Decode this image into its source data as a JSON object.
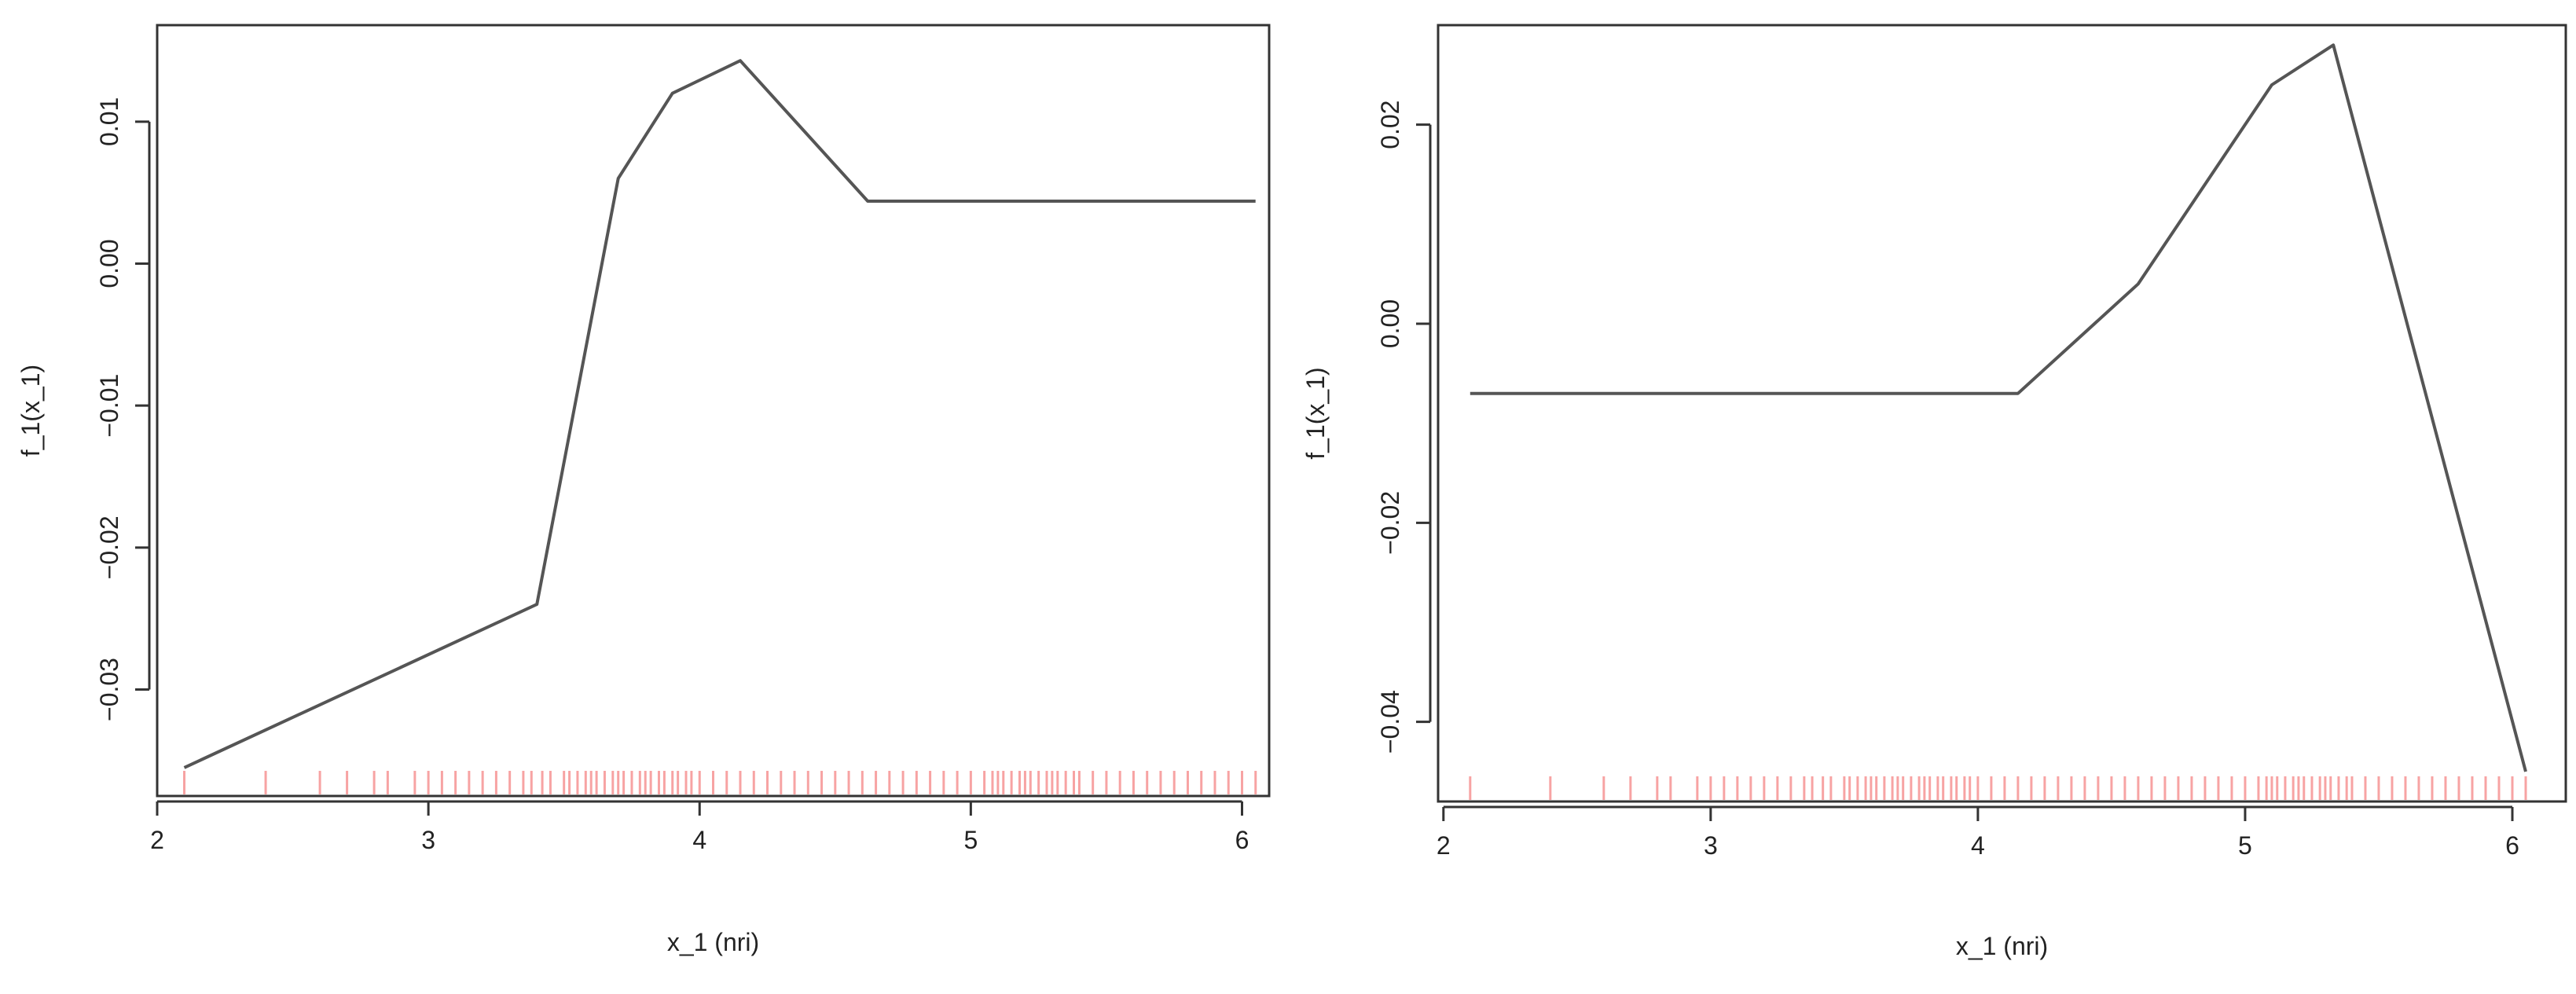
{
  "chart_data": [
    {
      "type": "line",
      "title": "",
      "xlabel": "x_1 (nri)",
      "ylabel": "f_1(x_1)",
      "xlim": [
        2.0,
        6.1
      ],
      "ylim": [
        -0.0375,
        0.0168
      ],
      "x_ticks": [
        2,
        3,
        4,
        5,
        6
      ],
      "x_tick_labels": [
        "2",
        "3",
        "4",
        "5",
        "6"
      ],
      "y_ticks": [
        -0.03,
        -0.02,
        -0.01,
        0.0,
        0.01
      ],
      "y_tick_labels": [
        "−0.03",
        "−0.02",
        "−0.01",
        "0.00",
        "0.01"
      ],
      "grid": false,
      "line_color": "#555555",
      "rug_color": "#ee3333",
      "series": [
        {
          "x": [
            2.1,
            3.4,
            3.7,
            3.9,
            4.15,
            4.62,
            6.05
          ],
          "y": [
            -0.0355,
            -0.024,
            0.006,
            0.012,
            0.0143,
            0.0044,
            0.0044
          ]
        }
      ]
    },
    {
      "type": "line",
      "title": "",
      "xlabel": "x_1 (nri)",
      "ylabel": "f_1(x_1)",
      "xlim": [
        1.98,
        6.2
      ],
      "ylim": [
        -0.048,
        0.03
      ],
      "x_ticks": [
        2,
        3,
        4,
        5,
        6
      ],
      "x_tick_labels": [
        "2",
        "3",
        "4",
        "5",
        "6"
      ],
      "y_ticks": [
        -0.04,
        -0.02,
        0.0,
        0.02
      ],
      "y_tick_labels": [
        "−0.04",
        "−0.02",
        "0.00",
        "0.02"
      ],
      "grid": false,
      "line_color": "#555555",
      "rug_color": "#ee3333",
      "series": [
        {
          "x": [
            2.1,
            4.15,
            4.6,
            5.1,
            5.33,
            6.05
          ],
          "y": [
            -0.007,
            -0.007,
            0.004,
            0.024,
            0.028,
            -0.045
          ]
        }
      ]
    }
  ],
  "rug_x": [
    2.1,
    2.4,
    2.6,
    2.7,
    2.8,
    2.85,
    2.95,
    3.0,
    3.05,
    3.1,
    3.15,
    3.2,
    3.25,
    3.3,
    3.35,
    3.38,
    3.42,
    3.45,
    3.5,
    3.52,
    3.55,
    3.58,
    3.6,
    3.62,
    3.65,
    3.68,
    3.7,
    3.72,
    3.75,
    3.78,
    3.8,
    3.82,
    3.85,
    3.87,
    3.9,
    3.92,
    3.95,
    3.97,
    4.0,
    4.05,
    4.1,
    4.15,
    4.2,
    4.25,
    4.3,
    4.35,
    4.4,
    4.45,
    4.5,
    4.55,
    4.6,
    4.65,
    4.7,
    4.75,
    4.8,
    4.85,
    4.9,
    4.95,
    5.0,
    5.05,
    5.08,
    5.1,
    5.12,
    5.15,
    5.18,
    5.2,
    5.22,
    5.25,
    5.28,
    5.3,
    5.32,
    5.35,
    5.38,
    5.4,
    5.45,
    5.5,
    5.55,
    5.6,
    5.65,
    5.7,
    5.75,
    5.8,
    5.85,
    5.9,
    5.95,
    6.0,
    6.05
  ]
}
